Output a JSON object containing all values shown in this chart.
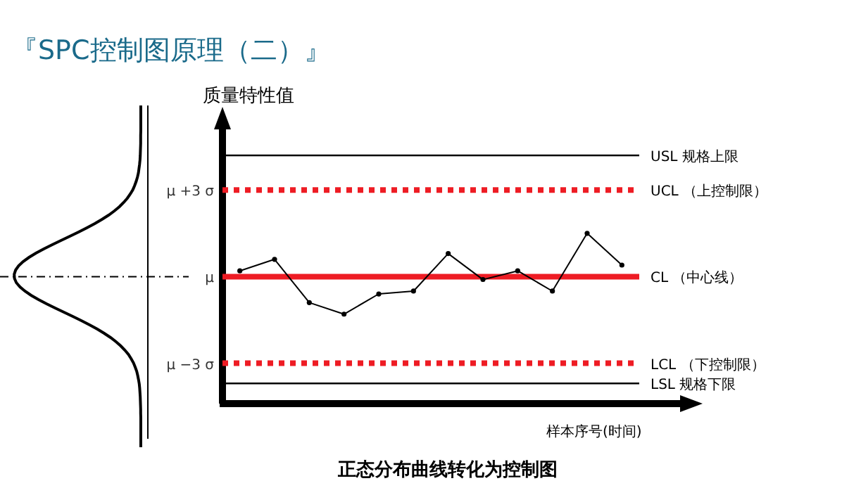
{
  "chart_data": {
    "type": "line",
    "title": "『SPC控制图原理（二）』",
    "ylabel": "质量特性值",
    "xlabel": "样本序号(时间)",
    "annotations": [
      "正态分布曲线转化为控制图"
    ],
    "categories": [
      null,
      null,
      null,
      null,
      null,
      null,
      null,
      null,
      null,
      null,
      null,
      null
    ],
    "series": [
      {
        "color": "#000000",
        "values": [
          0.2,
          0.6,
          -0.9,
          -1.3,
          -0.6,
          -0.5,
          0.8,
          -0.1,
          0.2,
          -0.5,
          1.5,
          0.4
        ]
      }
    ],
    "ylim": [
      -4.4,
      5.2
    ],
    "yticks": [
      {
        "value": 3,
        "label": "μ +3 σ"
      },
      {
        "value": 0,
        "label": "μ"
      },
      {
        "value": -3,
        "label": "μ −3 σ"
      }
    ],
    "ref_lines": [
      {
        "axis": "y",
        "value": 4.2,
        "label": "USL 规格上限",
        "color": "#000000",
        "line_style": "solid"
      },
      {
        "axis": "y",
        "value": 3,
        "label": "UCL （上控制限）",
        "color": "#ee1c24",
        "line_style": "dotted"
      },
      {
        "axis": "y",
        "value": 0,
        "label": "CL （中心线）",
        "color": "#ee1c24",
        "line_style": "solid"
      },
      {
        "axis": "y",
        "value": -3,
        "label": "LCL （下控制限）",
        "color": "#ee1c24",
        "line_style": "dotted"
      },
      {
        "axis": "y",
        "value": -3.7,
        "label": "LSL 规格下限",
        "color": "#000000",
        "line_style": "solid"
      }
    ],
    "marker": "circle",
    "grid": false
  }
}
